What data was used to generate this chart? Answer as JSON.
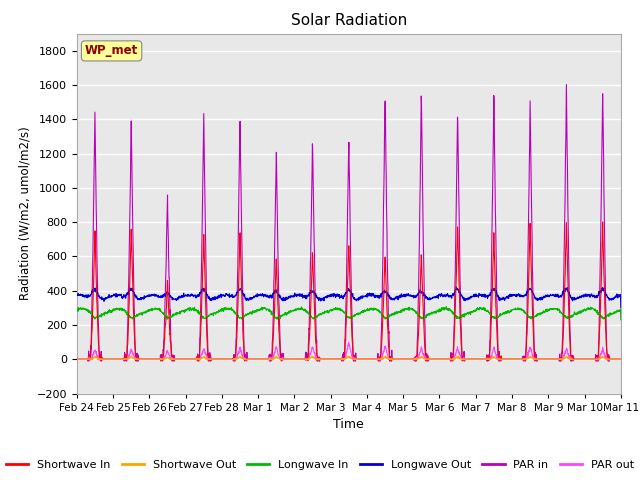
{
  "title": "Solar Radiation",
  "xlabel": "Time",
  "ylabel": "Radiation (W/m2, umol/m2/s)",
  "ylim": [
    -200,
    1900
  ],
  "yticks": [
    -200,
    0,
    200,
    400,
    600,
    800,
    1000,
    1200,
    1400,
    1600,
    1800
  ],
  "annotation_text": "WP_met",
  "annotation_color": "#8B0000",
  "annotation_bg": "#FFFF99",
  "colors": {
    "shortwave_in": "#FF0000",
    "shortwave_out": "#FFA500",
    "longwave_in": "#00BB00",
    "longwave_out": "#0000DD",
    "par_in": "#BB00BB",
    "par_out": "#FF44FF"
  },
  "legend_labels": [
    "Shortwave In",
    "Shortwave Out",
    "Longwave In",
    "Longwave Out",
    "PAR in",
    "PAR out"
  ],
  "n_days": 15,
  "day_labels": [
    "Feb 24",
    "Feb 25",
    "Feb 26",
    "Feb 27",
    "Feb 28",
    "Mar 1",
    "Mar 2",
    "Mar 3",
    "Mar 4",
    "Mar 5",
    "Mar 6",
    "Mar 7",
    "Mar 8",
    "Mar 9",
    "Mar 10",
    "Mar 11"
  ],
  "background_color": "#E8E8E8",
  "grid_color": "#FFFFFF",
  "points_per_day": 144,
  "sw_in_peaks": [
    750,
    770,
    460,
    750,
    750,
    600,
    640,
    700,
    620,
    620,
    800,
    750,
    800,
    800,
    800
  ],
  "par_in_peaks": [
    1420,
    1420,
    940,
    1430,
    1430,
    1230,
    1290,
    1300,
    1580,
    1560,
    1480,
    1570,
    1490,
    1580,
    1600
  ],
  "par_out_peaks": [
    60,
    60,
    50,
    65,
    70,
    75,
    75,
    100,
    80,
    70,
    70,
    70,
    75,
    60,
    60
  ],
  "sw_out_peaks": [
    15,
    15,
    10,
    15,
    15,
    15,
    15,
    18,
    15,
    15,
    15,
    15,
    15,
    15,
    15
  ],
  "lw_in_base": 280,
  "lw_out_base": 360
}
